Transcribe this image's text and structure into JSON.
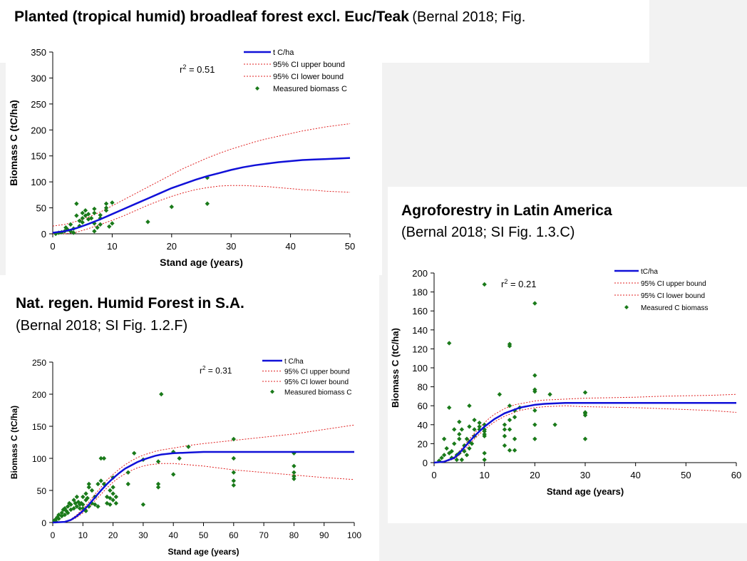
{
  "colors": {
    "fit_line": "#1010d8",
    "ci_line": "#e02020",
    "points": "#1a7a1a",
    "background": "#ffffff"
  },
  "header": {
    "title_bold": "Planted (tropical humid) broadleaf forest excl. Euc/Teak",
    "title_ref": "(Bernal 2018; Fig."
  },
  "panels": {
    "b_title": "Agroforestry in Latin America",
    "b_ref": "(Bernal 2018; SI Fig. 1.3.C)",
    "c_title": "Nat. regen. Humid Forest in S.A.",
    "c_ref": "(Bernal 2018; SI Fig. 1.2.F)"
  },
  "chart_data": [
    {
      "id": "planted",
      "type": "scatter",
      "xlabel": "Stand age (years)",
      "ylabel": "Biomass C  (tC/ha)",
      "xlim": [
        0,
        50
      ],
      "ylim": [
        0,
        350
      ],
      "xticks": [
        0,
        10,
        20,
        30,
        40,
        50
      ],
      "yticks": [
        0,
        50,
        100,
        150,
        200,
        250,
        300,
        350
      ],
      "r2_label": "r",
      "r2_sup": "2",
      "r2_value": " = 0.51",
      "legend": [
        "t C/ha",
        "95% CI upper bound",
        "95% CI lower bound",
        "Measured biomass C"
      ],
      "fit": {
        "x": [
          0,
          2,
          4,
          6,
          8,
          10,
          12,
          14,
          16,
          18,
          20,
          22,
          24,
          26,
          28,
          30,
          32,
          34,
          36,
          38,
          40,
          42,
          44,
          46,
          48,
          50
        ],
        "y": [
          2,
          5,
          11,
          19,
          28,
          38,
          48,
          58,
          68,
          78,
          88,
          96,
          104,
          111,
          117,
          123,
          128,
          132,
          135,
          138,
          140,
          142,
          143,
          144,
          145,
          146
        ]
      },
      "upper": {
        "x": [
          0,
          2,
          4,
          6,
          8,
          10,
          12,
          14,
          16,
          18,
          20,
          22,
          24,
          26,
          28,
          30,
          32,
          34,
          36,
          38,
          40,
          42,
          44,
          46,
          48,
          50
        ],
        "y": [
          15,
          18,
          24,
          32,
          42,
          54,
          66,
          78,
          90,
          102,
          114,
          126,
          136,
          146,
          155,
          163,
          170,
          177,
          183,
          188,
          193,
          198,
          202,
          206,
          209,
          212
        ]
      },
      "lower": {
        "x": [
          0,
          2,
          4,
          6,
          8,
          10,
          12,
          14,
          16,
          18,
          20,
          22,
          24,
          26,
          28,
          30,
          32,
          34,
          36,
          38,
          40,
          42,
          44,
          46,
          48,
          50
        ],
        "y": [
          0,
          0,
          3,
          10,
          18,
          26,
          35,
          45,
          55,
          64,
          72,
          79,
          85,
          89,
          92,
          93,
          93,
          92,
          91,
          89,
          87,
          85,
          84,
          82,
          81,
          80
        ]
      },
      "points": {
        "x": [
          0.5,
          1,
          1.5,
          2,
          2.2,
          2.5,
          3,
          3,
          3.5,
          3.5,
          4,
          4,
          4.5,
          4.5,
          5,
          5,
          5,
          5.5,
          5.5,
          6,
          6,
          6.5,
          7,
          7,
          7,
          7,
          7.5,
          8,
          8,
          8,
          9,
          9,
          9,
          9.5,
          10,
          10,
          16,
          20,
          26,
          26
        ],
        "y": [
          0,
          2,
          3,
          5,
          12,
          8,
          18,
          5,
          10,
          2,
          58,
          35,
          25,
          15,
          40,
          30,
          22,
          45,
          35,
          38,
          28,
          30,
          48,
          40,
          20,
          5,
          12,
          36,
          30,
          18,
          58,
          50,
          45,
          14,
          60,
          20,
          23,
          52,
          108,
          58
        ]
      }
    },
    {
      "id": "agroforestry",
      "type": "scatter",
      "xlabel": "Stand age (years)",
      "ylabel": "Biomass C (tC/ha)",
      "xlim": [
        0,
        60
      ],
      "ylim": [
        0,
        200
      ],
      "xticks": [
        0,
        10,
        20,
        30,
        40,
        50,
        60
      ],
      "yticks": [
        0,
        20,
        40,
        60,
        80,
        100,
        120,
        140,
        160,
        180,
        200
      ],
      "r2_label": "r",
      "r2_sup": "2",
      "r2_value": " = 0.21",
      "legend": [
        "tC/ha",
        "95% CI upper bound",
        "95% CI lower bound",
        "Measured C biomass"
      ],
      "fit": {
        "x": [
          0,
          2,
          4,
          5,
          6,
          7,
          8,
          9,
          10,
          11,
          12,
          13,
          14,
          15,
          16,
          17,
          18,
          19,
          20,
          22,
          24,
          26,
          28,
          30,
          35,
          40,
          45,
          50,
          55,
          60
        ],
        "y": [
          0,
          1,
          5,
          10,
          16,
          22,
          28,
          33,
          38,
          42,
          46,
          49,
          52,
          54,
          56,
          58,
          59,
          60,
          61,
          62,
          62.5,
          63,
          63,
          63,
          63,
          63,
          63,
          63,
          63,
          63
        ]
      },
      "upper": {
        "x": [
          0,
          2,
          4,
          5,
          6,
          7,
          8,
          9,
          10,
          11,
          12,
          13,
          14,
          15,
          16,
          17,
          18,
          19,
          20,
          22,
          24,
          26,
          28,
          30,
          35,
          40,
          45,
          50,
          55,
          60
        ],
        "y": [
          0,
          1.5,
          6,
          12,
          18,
          25,
          31,
          37,
          42,
          47,
          51,
          54,
          57,
          59,
          61,
          62,
          63,
          64,
          65,
          66,
          66.5,
          67,
          67.5,
          68,
          68.5,
          69,
          70,
          70.5,
          71,
          72
        ]
      },
      "lower": {
        "x": [
          0,
          2,
          4,
          5,
          6,
          7,
          8,
          9,
          10,
          11,
          12,
          13,
          14,
          15,
          16,
          17,
          18,
          19,
          20,
          22,
          24,
          26,
          28,
          30,
          35,
          40,
          45,
          50,
          55,
          60
        ],
        "y": [
          0,
          0.5,
          4,
          8,
          13,
          19,
          25,
          30,
          35,
          39,
          43,
          46,
          49,
          51,
          53,
          55,
          56,
          57,
          58,
          59,
          59.5,
          60,
          59.5,
          59,
          58.5,
          58,
          57,
          56,
          55,
          53
        ]
      },
      "points": {
        "x": [
          1,
          1.5,
          2,
          2,
          2.5,
          3,
          3,
          3,
          3.5,
          3.5,
          4,
          4,
          4.5,
          4.5,
          5,
          5,
          5,
          5,
          5.5,
          5.5,
          6,
          6,
          6.5,
          6.5,
          7,
          7,
          7,
          7,
          7.5,
          8,
          8,
          8,
          9,
          9,
          9,
          10,
          10,
          10,
          10,
          10,
          10,
          10,
          10,
          13,
          14,
          14,
          14,
          14,
          15,
          15,
          15,
          15,
          15,
          15,
          16,
          16,
          16,
          16,
          17,
          20,
          20,
          20,
          20,
          20,
          20,
          20,
          23,
          24,
          30,
          30,
          30,
          30,
          30
        ],
        "y": [
          2,
          5,
          25,
          8,
          15,
          126,
          58,
          10,
          12,
          5,
          35,
          20,
          8,
          3,
          43,
          30,
          25,
          10,
          35,
          3,
          18,
          12,
          25,
          8,
          60,
          38,
          22,
          15,
          20,
          45,
          35,
          28,
          42,
          38,
          35,
          188,
          40,
          35,
          33,
          30,
          28,
          10,
          3,
          72,
          40,
          35,
          28,
          18,
          125,
          123,
          60,
          45,
          35,
          13,
          55,
          48,
          25,
          13,
          58,
          168,
          92,
          77,
          75,
          55,
          40,
          25,
          72,
          40,
          74,
          53,
          52,
          50,
          25
        ]
      }
    },
    {
      "id": "natregen",
      "type": "scatter",
      "xlabel": "Stand age (years)",
      "ylabel": "Biomass C (tC/ha)",
      "xlim": [
        0,
        100
      ],
      "ylim": [
        0,
        250
      ],
      "xticks": [
        0,
        10,
        20,
        30,
        40,
        50,
        60,
        70,
        80,
        90,
        100
      ],
      "yticks": [
        0,
        50,
        100,
        150,
        200,
        250
      ],
      "r2_label": "r",
      "r2_sup": "2",
      "r2_value": " = 0.31",
      "legend": [
        "t C/ha",
        "95% CI upper bound",
        "95% CI lower bound",
        "Measured biomass C"
      ],
      "fit": {
        "x": [
          0,
          4,
          6,
          8,
          10,
          12,
          14,
          16,
          18,
          20,
          22,
          24,
          26,
          28,
          30,
          32,
          34,
          36,
          40,
          45,
          50,
          60,
          70,
          80,
          90,
          100
        ],
        "y": [
          0,
          1,
          4,
          10,
          18,
          28,
          39,
          50,
          60,
          69,
          77,
          84,
          89,
          94,
          98,
          101,
          104,
          106,
          108,
          109,
          110,
          110,
          110,
          110,
          110,
          110
        ]
      },
      "upper": {
        "x": [
          0,
          4,
          6,
          8,
          10,
          12,
          14,
          16,
          18,
          20,
          22,
          24,
          26,
          28,
          30,
          32,
          34,
          36,
          40,
          45,
          50,
          60,
          70,
          80,
          90,
          100
        ],
        "y": [
          0,
          1,
          5,
          12,
          21,
          32,
          44,
          55,
          66,
          75,
          83,
          90,
          96,
          101,
          105,
          108,
          111,
          113,
          116,
          120,
          123,
          128,
          133,
          138,
          145,
          152
        ]
      },
      "lower": {
        "x": [
          0,
          4,
          6,
          8,
          10,
          12,
          14,
          16,
          18,
          20,
          22,
          24,
          26,
          28,
          30,
          32,
          34,
          36,
          40,
          45,
          50,
          60,
          70,
          80,
          90,
          100
        ],
        "y": [
          0,
          0.5,
          3,
          8,
          15,
          24,
          34,
          44,
          54,
          63,
          70,
          76,
          81,
          85,
          88,
          90,
          91,
          92,
          92,
          90,
          88,
          82,
          78,
          74,
          70,
          67
        ]
      },
      "points": {
        "x": [
          0.5,
          1,
          1,
          1.5,
          2,
          2,
          3,
          3,
          3.5,
          4,
          4,
          4.5,
          5,
          5,
          5.5,
          6,
          6,
          7,
          7,
          7.5,
          8,
          8,
          8.5,
          9,
          9,
          9.5,
          10,
          10,
          10,
          11,
          11,
          11,
          11.5,
          12,
          12,
          12,
          13,
          13,
          14,
          14,
          15,
          15,
          16,
          16,
          17,
          17,
          18,
          18,
          19,
          19,
          19,
          20,
          20,
          20,
          20,
          21,
          21,
          25,
          25,
          27,
          30,
          30,
          35,
          35,
          35,
          36,
          40,
          40,
          42,
          45,
          60,
          60,
          60,
          60,
          60,
          80,
          80,
          80,
          80,
          80
        ],
        "y": [
          3,
          5,
          2,
          8,
          12,
          6,
          15,
          10,
          20,
          22,
          12,
          18,
          25,
          15,
          30,
          20,
          28,
          35,
          22,
          30,
          40,
          25,
          32,
          28,
          22,
          30,
          40,
          28,
          22,
          45,
          35,
          18,
          38,
          60,
          55,
          25,
          50,
          30,
          40,
          28,
          60,
          25,
          100,
          65,
          100,
          60,
          40,
          30,
          50,
          38,
          28,
          70,
          55,
          45,
          35,
          40,
          30,
          78,
          60,
          108,
          98,
          28,
          95,
          60,
          55,
          200,
          110,
          75,
          100,
          118,
          130,
          100,
          78,
          65,
          58,
          108,
          88,
          78,
          72,
          68
        ]
      }
    }
  ]
}
